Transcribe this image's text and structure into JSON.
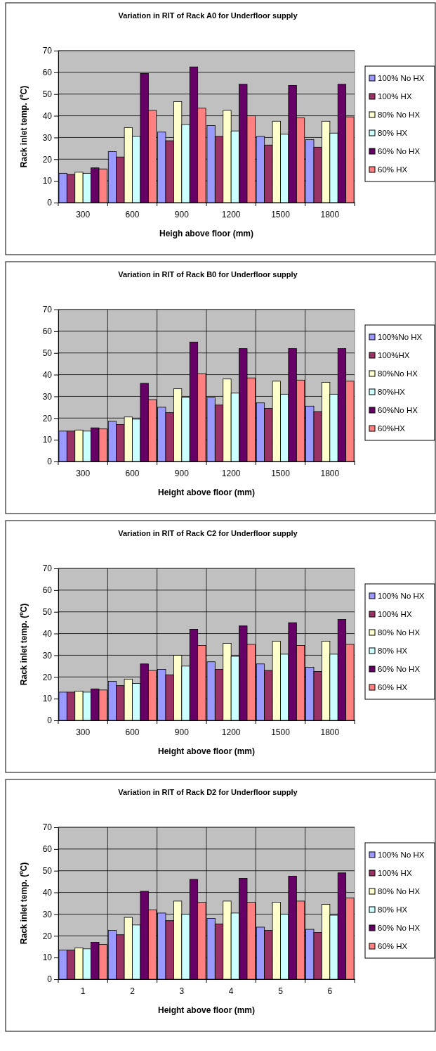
{
  "chart_data": [
    {
      "type": "bar",
      "title": "Variation in RIT of Rack A0 for Underfloor supply",
      "xlabel": "Heigh above floor (mm)",
      "ylabel": "Rack inlet temp. (ºC)",
      "categories": [
        "300",
        "600",
        "900",
        "1200",
        "1500",
        "1800"
      ],
      "ylim": [
        0,
        70
      ],
      "yticks": [
        0,
        10,
        20,
        30,
        40,
        50,
        60,
        70
      ],
      "grid": "y",
      "legend": "right",
      "series": [
        {
          "name": "100% No HX",
          "color": "#9999ff",
          "values": [
            13.5,
            23.5,
            32.5,
            35.5,
            30.5,
            29
          ]
        },
        {
          "name": "100% HX",
          "color": "#993366",
          "values": [
            13,
            21,
            28.5,
            30.5,
            26.5,
            25.5
          ]
        },
        {
          "name": "80% No HX",
          "color": "#ffffcc",
          "values": [
            14,
            34.5,
            46.5,
            42.5,
            37.5,
            37.5
          ]
        },
        {
          "name": "80% HX",
          "color": "#ccffff",
          "values": [
            13.5,
            30.5,
            36,
            33,
            31.5,
            32
          ]
        },
        {
          "name": "60% No HX",
          "color": "#660066",
          "values": [
            16,
            59.5,
            62.5,
            54.5,
            54,
            54.5
          ]
        },
        {
          "name": "60% HX",
          "color": "#ff8080",
          "values": [
            15.5,
            42.5,
            43.5,
            40,
            39,
            39.5
          ]
        }
      ]
    },
    {
      "type": "bar",
      "title": "Variation in RIT of Rack B0 for Underfloor supply",
      "xlabel": "Height above floor (mm)",
      "categories": [
        "300",
        "600",
        "900",
        "1200",
        "1500",
        "1800"
      ],
      "ylim": [
        0,
        70
      ],
      "yticks": [
        0,
        10,
        20,
        30,
        40,
        50,
        60,
        70
      ],
      "grid": true,
      "legend": "right",
      "series": [
        {
          "name": "100%No HX",
          "color": "#9999ff",
          "values": [
            14,
            18.5,
            25,
            29.5,
            27,
            25.5
          ]
        },
        {
          "name": "100%HX",
          "color": "#993366",
          "values": [
            14,
            17,
            22.5,
            26,
            24.5,
            23
          ]
        },
        {
          "name": "80%No HX",
          "color": "#ffffcc",
          "values": [
            14.5,
            20.5,
            33.5,
            38,
            37,
            36.5
          ]
        },
        {
          "name": "80%HX",
          "color": "#ccffff",
          "values": [
            14,
            19.5,
            29.5,
            31.5,
            31,
            31
          ]
        },
        {
          "name": "60%No HX",
          "color": "#660066",
          "values": [
            15.5,
            36,
            55,
            52,
            52,
            52
          ]
        },
        {
          "name": "60%HX",
          "color": "#ff8080",
          "values": [
            15,
            28.5,
            40.5,
            38.5,
            37.5,
            37
          ]
        }
      ]
    },
    {
      "type": "bar",
      "title": "Variation in RIT of Rack C2 for Underfloor supply",
      "xlabel": "Height above floor (mm)",
      "ylabel": "Rack inlet temp. (ºC)",
      "categories": [
        "300",
        "600",
        "900",
        "1200",
        "1500",
        "1800"
      ],
      "ylim": [
        0,
        70
      ],
      "yticks": [
        0,
        10,
        20,
        30,
        40,
        50,
        60,
        70
      ],
      "grid": true,
      "legend": "right",
      "series": [
        {
          "name": "100% No HX",
          "color": "#9999ff",
          "values": [
            13,
            18,
            23.5,
            27,
            26,
            24.5
          ]
        },
        {
          "name": "100% HX",
          "color": "#993366",
          "values": [
            13,
            16,
            21,
            23.5,
            23,
            22.5
          ]
        },
        {
          "name": "80% No HX",
          "color": "#ffffcc",
          "values": [
            13.5,
            19,
            30,
            35.5,
            36.5,
            36.5
          ]
        },
        {
          "name": "80% HX",
          "color": "#ccffff",
          "values": [
            13,
            17,
            25,
            29.5,
            30.5,
            30.5
          ]
        },
        {
          "name": "60% No HX",
          "color": "#660066",
          "values": [
            14.5,
            26,
            42,
            43.5,
            45,
            46.5
          ]
        },
        {
          "name": "60% HX",
          "color": "#ff8080",
          "values": [
            14,
            23,
            34.5,
            35,
            34.5,
            35
          ]
        }
      ]
    },
    {
      "type": "bar",
      "title": "Variation in RIT of Rack D2 for Underfloor supply",
      "xlabel": "Height above floor (mm)",
      "ylabel": "Rack inlet temp. (ºC)",
      "categories": [
        "1",
        "2",
        "3",
        "4",
        "5",
        "6"
      ],
      "ylim": [
        0,
        70
      ],
      "yticks": [
        0,
        10,
        20,
        30,
        40,
        50,
        60,
        70
      ],
      "grid": true,
      "legend": "right",
      "series": [
        {
          "name": "100% No HX",
          "color": "#9999ff",
          "values": [
            13.5,
            22.5,
            30.5,
            28,
            24,
            23
          ]
        },
        {
          "name": "100% HX",
          "color": "#993366",
          "values": [
            13.5,
            20.5,
            27,
            25.5,
            22.5,
            21.5
          ]
        },
        {
          "name": "80% No HX",
          "color": "#ffffcc",
          "values": [
            14.5,
            28.5,
            36,
            36,
            35.5,
            34.5
          ]
        },
        {
          "name": "80% HX",
          "color": "#ccffff",
          "values": [
            14,
            25,
            30,
            30.5,
            30,
            29.5
          ]
        },
        {
          "name": "60% No HX",
          "color": "#660066",
          "values": [
            17,
            40.5,
            46,
            46.5,
            47.5,
            49
          ]
        },
        {
          "name": "60% HX",
          "color": "#ff8080",
          "values": [
            16,
            32,
            35.5,
            35.5,
            36,
            37.5
          ]
        }
      ]
    }
  ]
}
